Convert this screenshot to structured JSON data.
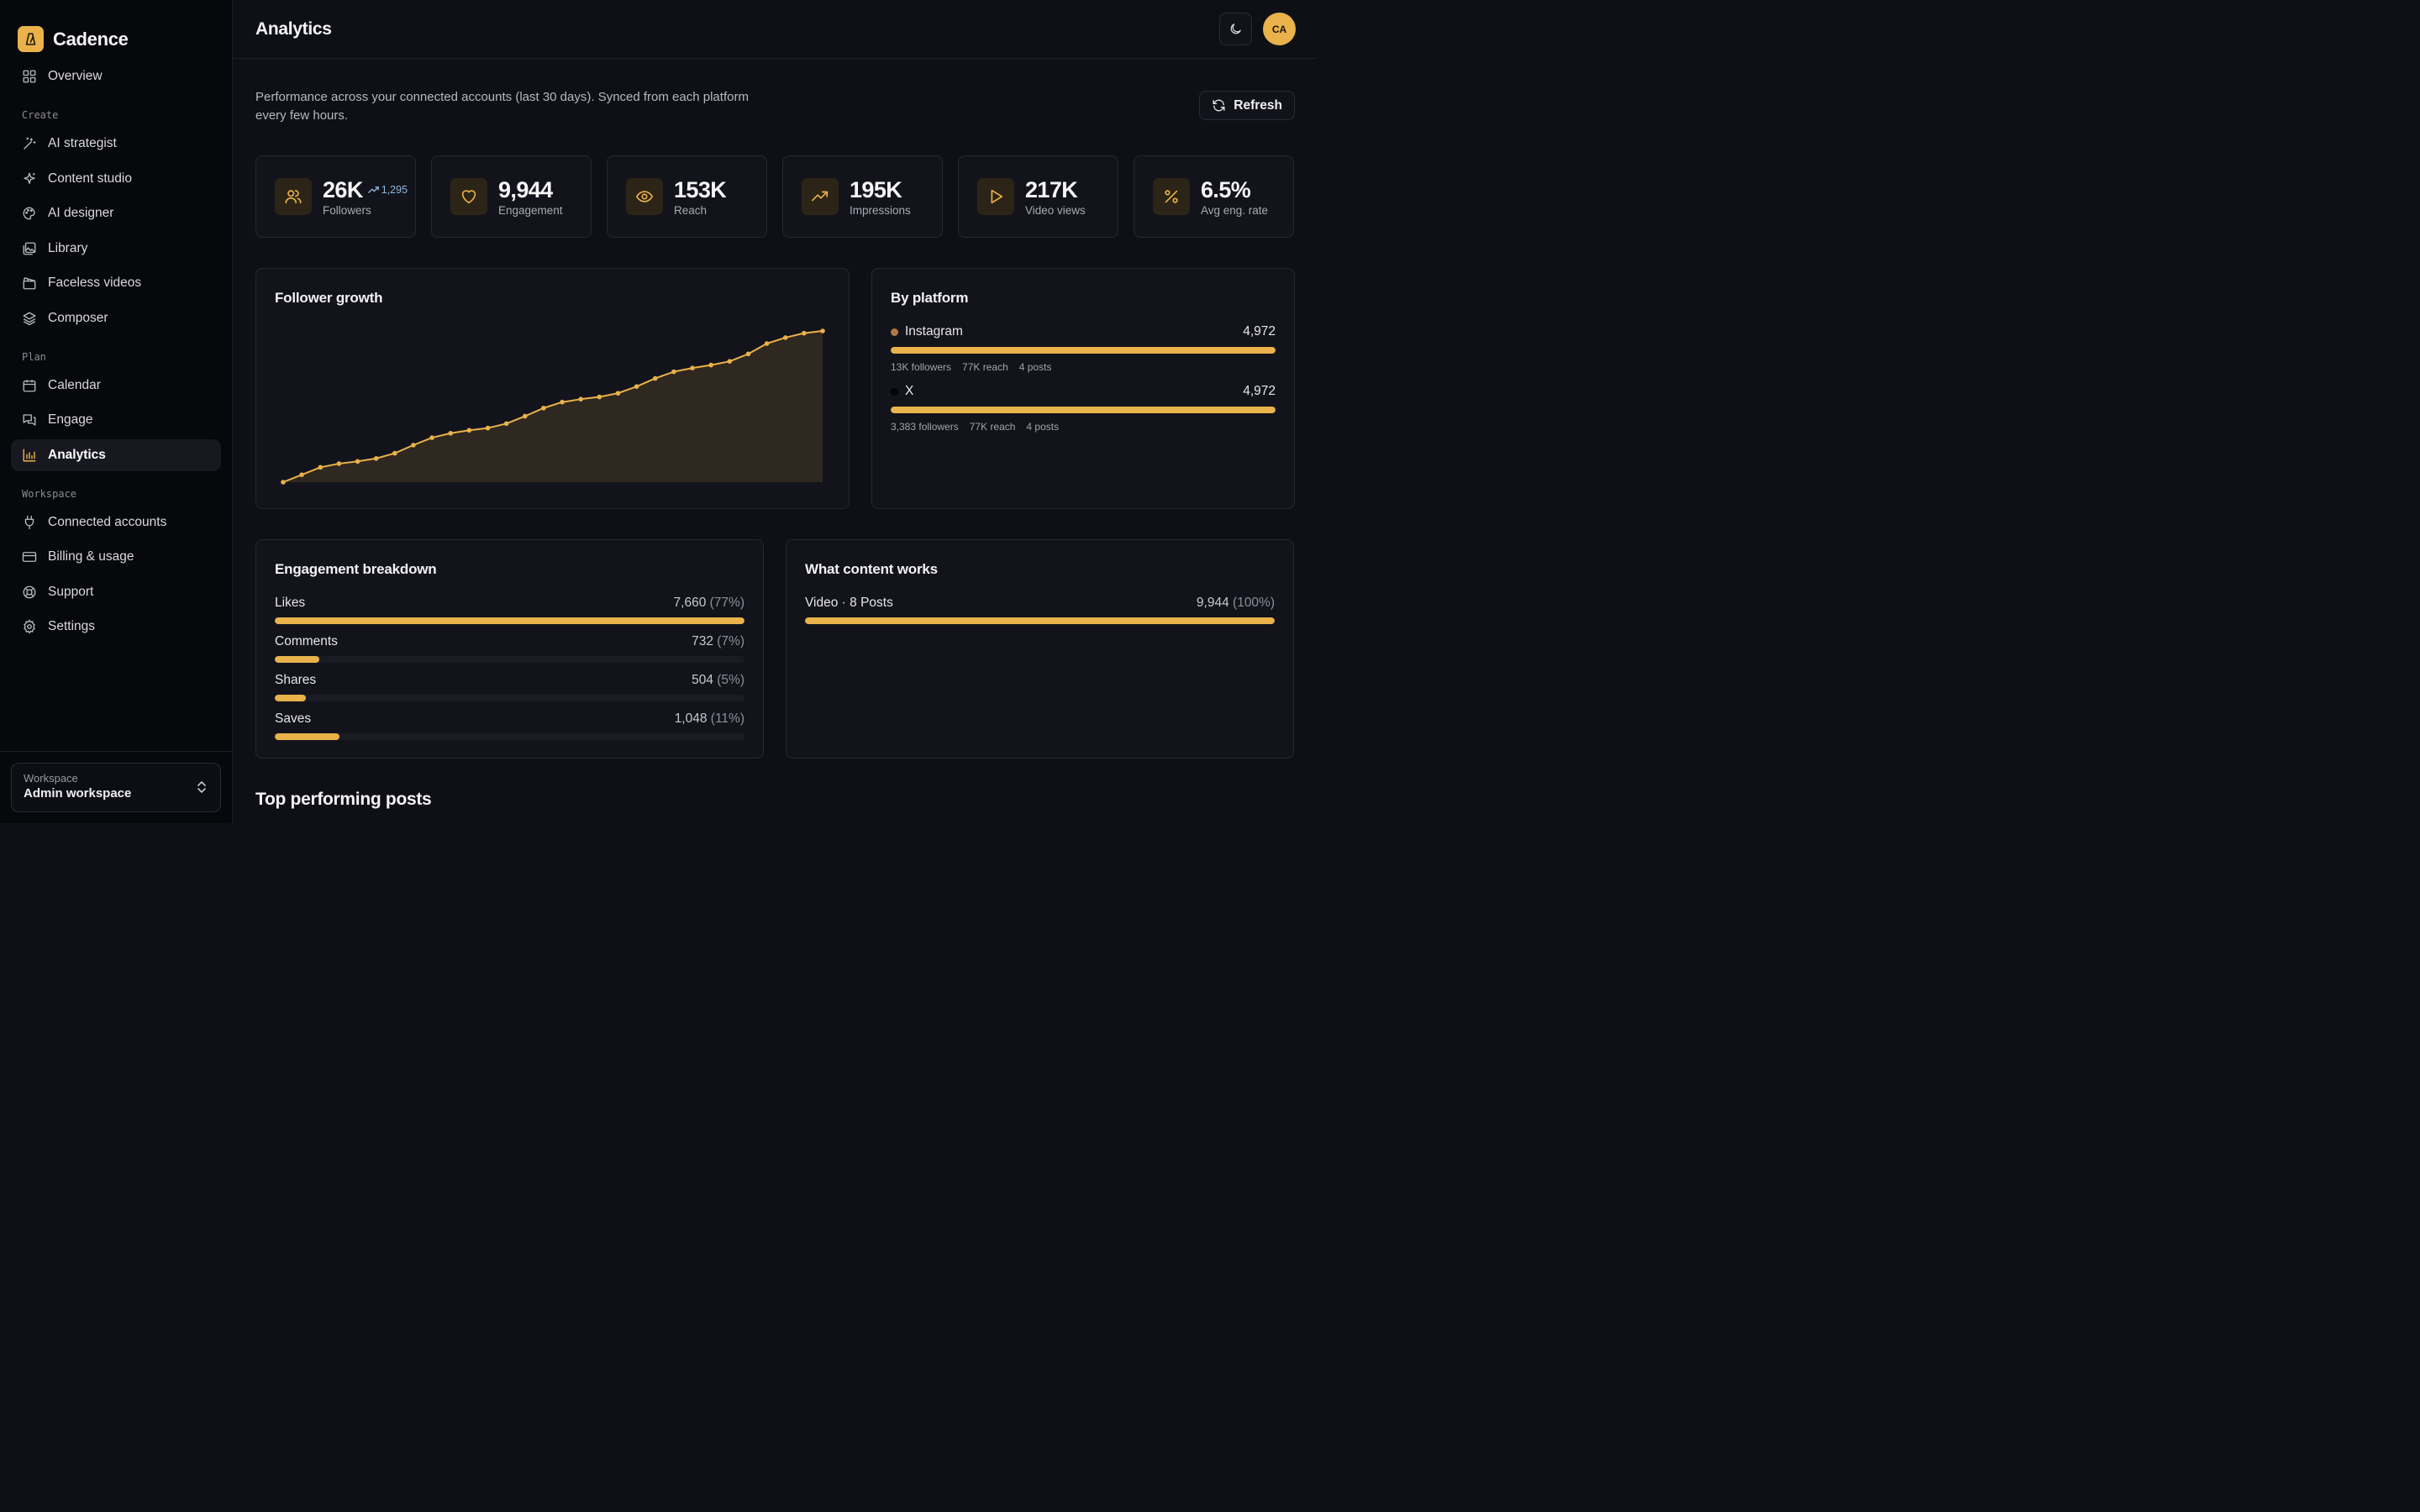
{
  "app": {
    "name": "Cadence"
  },
  "sidebar": {
    "overview": "Overview",
    "sections": {
      "create": "Create",
      "plan": "Plan",
      "workspace": "Workspace"
    },
    "create_items": [
      "AI strategist",
      "Content studio",
      "AI designer",
      "Library",
      "Faceless videos",
      "Composer"
    ],
    "plan_items": [
      "Calendar",
      "Engage",
      "Analytics"
    ],
    "workspace_items": [
      "Connected accounts",
      "Billing & usage",
      "Support",
      "Settings"
    ],
    "active_item": "Analytics",
    "footer": {
      "label": "Workspace",
      "name": "Admin workspace"
    }
  },
  "header": {
    "title": "Analytics",
    "avatar_initials": "CA"
  },
  "intro": "Performance across your connected accounts (last 30 days). Synced from each platform every few hours.",
  "refresh_label": "Refresh",
  "colors": {
    "accent": "#e9b24a",
    "background": "#0f1016",
    "panel": "#13141b",
    "instagram_dot": "#b07a45",
    "x_dot": "#050507"
  },
  "stats": [
    {
      "value": "26K",
      "label": "Followers",
      "delta": "1,295",
      "icon": "users-icon"
    },
    {
      "value": "9,944",
      "label": "Engagement",
      "icon": "heart-icon"
    },
    {
      "value": "153K",
      "label": "Reach",
      "icon": "eye-icon"
    },
    {
      "value": "195K",
      "label": "Impressions",
      "icon": "trending-up-icon"
    },
    {
      "value": "217K",
      "label": "Video views",
      "icon": "play-icon"
    },
    {
      "value": "6.5%",
      "label": "Avg eng. rate",
      "icon": "percent-icon"
    }
  ],
  "follower_growth": {
    "title": "Follower growth"
  },
  "chart_data": {
    "type": "area",
    "title": "Follower growth",
    "xlabel": "",
    "ylabel": "",
    "grid": false,
    "values": [
      0,
      1.0,
      2.0,
      2.5,
      2.8,
      3.2,
      3.9,
      5.0,
      6.0,
      6.6,
      7.0,
      7.3,
      7.9,
      8.9,
      10.0,
      10.8,
      11.2,
      11.5,
      12.0,
      12.9,
      14.0,
      14.9,
      15.4,
      15.8,
      16.3,
      17.3,
      18.7,
      19.5,
      20.1,
      20.4
    ]
  },
  "by_platform": {
    "title": "By platform",
    "items": [
      {
        "name": "Instagram",
        "value": "4,972",
        "share": 1.0,
        "followers": "13K followers",
        "reach": "77K reach",
        "posts": "4 posts"
      },
      {
        "name": "X",
        "value": "4,972",
        "share": 1.0,
        "followers": "3,383 followers",
        "reach": "77K reach",
        "posts": "4 posts"
      }
    ]
  },
  "engagement_breakdown": {
    "title": "Engagement breakdown",
    "items": [
      {
        "label": "Likes",
        "value": "7,660",
        "pct": "(77%)",
        "share": 1.0
      },
      {
        "label": "Comments",
        "value": "732",
        "pct": "(7%)",
        "share": 0.095
      },
      {
        "label": "Shares",
        "value": "504",
        "pct": "(5%)",
        "share": 0.066
      },
      {
        "label": "Saves",
        "value": "1,048",
        "pct": "(11%)",
        "share": 0.137
      }
    ]
  },
  "what_content_works": {
    "title": "What content works",
    "items": [
      {
        "label": "Video · 8 Posts",
        "value": "9,944",
        "pct": "(100%)",
        "share": 1.0
      }
    ]
  },
  "top_posts": {
    "title": "Top performing posts"
  }
}
